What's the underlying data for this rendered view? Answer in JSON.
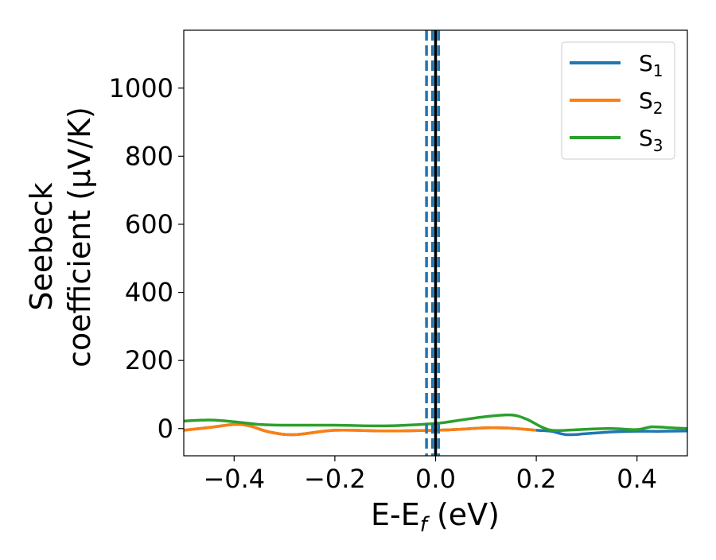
{
  "chart_data": {
    "type": "line",
    "xlabel": "E-E_f (eV)",
    "ylabel_line1": "Seebeck",
    "ylabel_line2": "coefficient  (μV/K)",
    "xlim": [
      -0.5,
      0.5
    ],
    "ylim": [
      -80,
      1170
    ],
    "xticks": [
      -0.4,
      -0.2,
      0.0,
      0.2,
      0.4
    ],
    "xtick_labels": [
      "−0.4",
      "−0.2",
      "0.0",
      "0.2",
      "0.4"
    ],
    "yticks": [
      0,
      200,
      400,
      600,
      800,
      1000
    ],
    "ytick_labels": [
      "0",
      "200",
      "400",
      "600",
      "800",
      "1000"
    ],
    "legend_position": "top-right",
    "grid": false,
    "vertical_lines": [
      {
        "x": 0.0,
        "style": "solid",
        "color": "#000000"
      },
      {
        "x": -0.018,
        "style": "dashed",
        "color": "#1f77b4"
      },
      {
        "x": -0.006,
        "style": "dashed",
        "color": "#1f77b4"
      },
      {
        "x": 0.006,
        "style": "dashed",
        "color": "#1f77b4"
      }
    ],
    "series": [
      {
        "name": "S_1",
        "color": "#1f77b4",
        "x": [
          -0.5,
          -0.45,
          -0.4,
          -0.37,
          -0.33,
          -0.28,
          -0.2,
          -0.1,
          0.0,
          0.05,
          0.1,
          0.15,
          0.2,
          0.23,
          0.26,
          0.3,
          0.35,
          0.4,
          0.45,
          0.5
        ],
        "y": [
          -5,
          3,
          12,
          8,
          -10,
          -18,
          -5,
          -7,
          -5,
          -2,
          2,
          1,
          -5,
          -8,
          -18,
          -15,
          -10,
          -8,
          -8,
          -7
        ]
      },
      {
        "name": "S_2",
        "color": "#ff7f0e",
        "x": [
          -0.5,
          -0.45,
          -0.4,
          -0.37,
          -0.33,
          -0.28,
          -0.2,
          -0.1,
          0.0,
          0.05,
          0.1,
          0.15,
          0.2
        ],
        "y": [
          -5,
          3,
          12,
          8,
          -10,
          -18,
          -5,
          -7,
          -5,
          -2,
          2,
          1,
          -5
        ]
      },
      {
        "name": "S_3",
        "color": "#2ca02c",
        "x": [
          -0.5,
          -0.45,
          -0.4,
          -0.35,
          -0.3,
          -0.2,
          -0.1,
          0.0,
          0.05,
          0.1,
          0.15,
          0.18,
          0.21,
          0.23,
          0.26,
          0.3,
          0.35,
          0.4,
          0.43,
          0.47,
          0.5
        ],
        "y": [
          22,
          25,
          20,
          12,
          10,
          10,
          8,
          15,
          25,
          35,
          40,
          28,
          5,
          -5,
          -5,
          -2,
          0,
          -3,
          5,
          2,
          0
        ]
      }
    ]
  }
}
